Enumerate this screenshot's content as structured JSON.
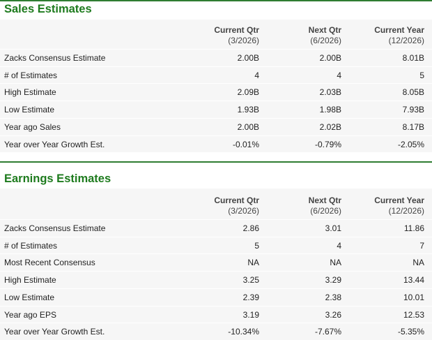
{
  "sections": [
    {
      "title": "Sales Estimates",
      "columns": [
        [
          "Current Qtr",
          "(3/2026)"
        ],
        [
          "Next Qtr",
          "(6/2026)"
        ],
        [
          "Current Year",
          "(12/2026)"
        ]
      ],
      "rows": [
        [
          "Zacks Consensus Estimate",
          "2.00B",
          "2.00B",
          "8.01B"
        ],
        [
          "# of Estimates",
          "4",
          "4",
          "5"
        ],
        [
          "High Estimate",
          "2.09B",
          "2.03B",
          "8.05B"
        ],
        [
          "Low Estimate",
          "1.93B",
          "1.98B",
          "7.93B"
        ],
        [
          "Year ago Sales",
          "2.00B",
          "2.02B",
          "8.17B"
        ],
        [
          "Year over Year Growth Est.",
          "-0.01%",
          "-0.79%",
          "-2.05%"
        ]
      ]
    },
    {
      "title": "Earnings Estimates",
      "columns": [
        [
          "Current Qtr",
          "(3/2026)"
        ],
        [
          "Next Qtr",
          "(6/2026)"
        ],
        [
          "Current Year",
          "(12/2026)"
        ]
      ],
      "rows": [
        [
          "Zacks Consensus Estimate",
          "2.86",
          "3.01",
          "11.86"
        ],
        [
          "# of Estimates",
          "5",
          "4",
          "7"
        ],
        [
          "Most Recent Consensus",
          "NA",
          "NA",
          "NA"
        ],
        [
          "High Estimate",
          "3.25",
          "3.29",
          "13.44"
        ],
        [
          "Low Estimate",
          "2.39",
          "2.38",
          "10.01"
        ],
        [
          "Year ago EPS",
          "3.19",
          "3.26",
          "12.53"
        ],
        [
          "Year over Year Growth Est.",
          "-10.34%",
          "-7.67%",
          "-5.35%"
        ]
      ]
    }
  ]
}
